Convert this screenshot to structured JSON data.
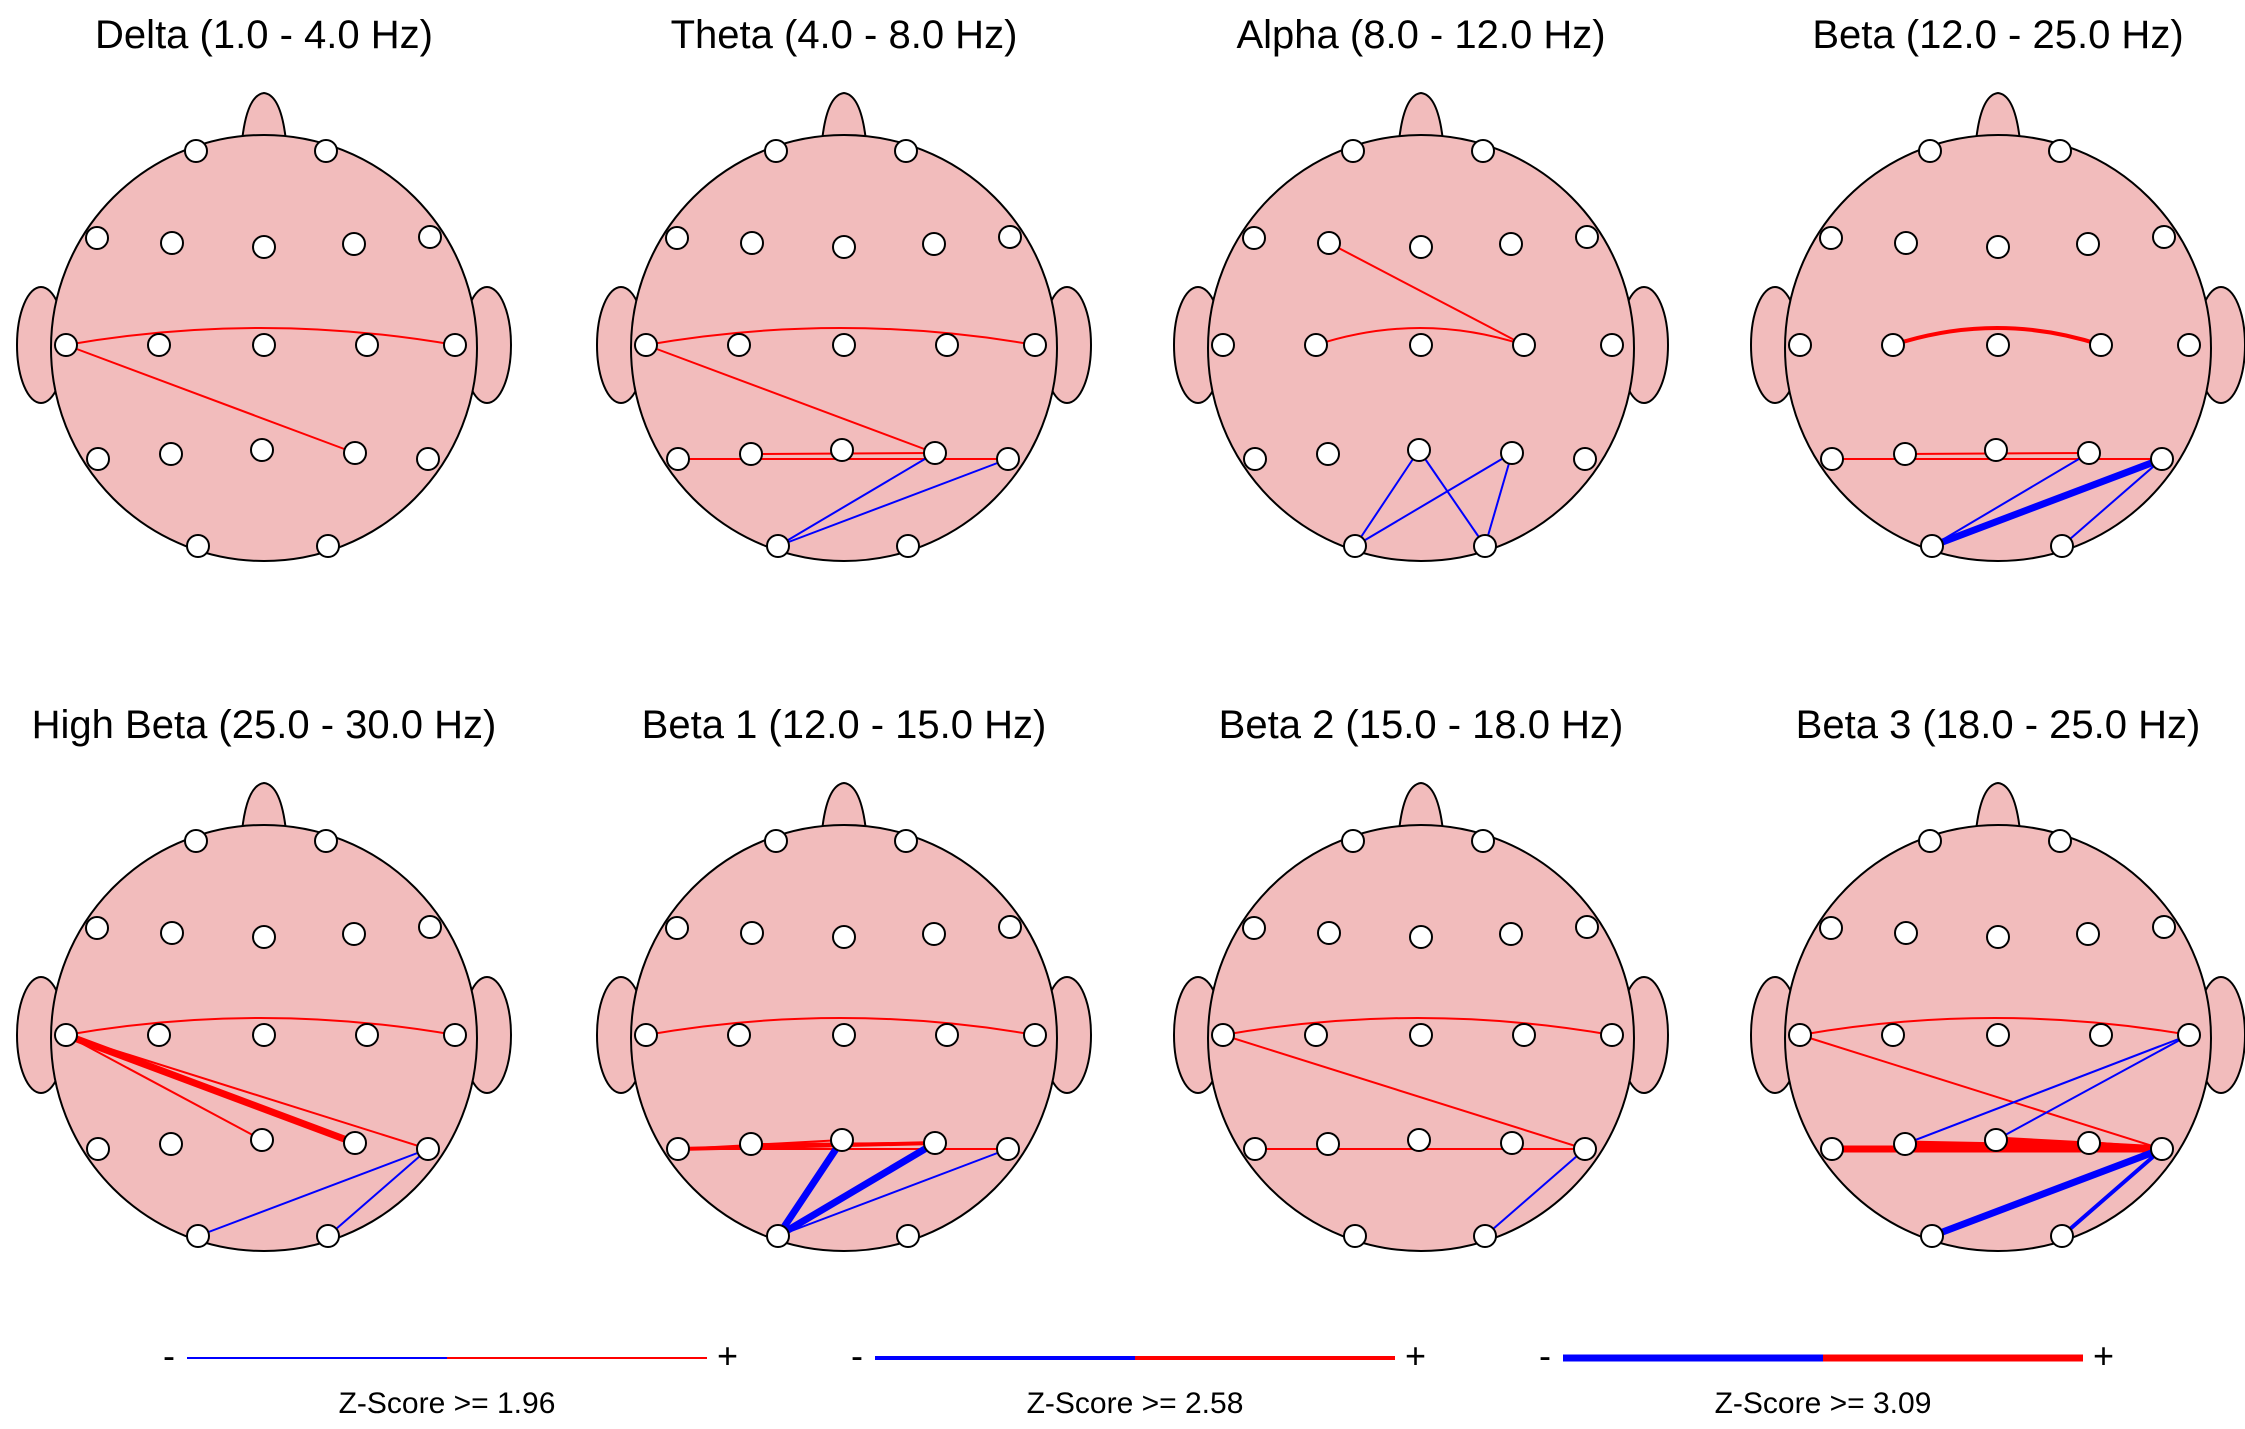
{
  "colors": {
    "head_fill": "#f2bcbc",
    "outline": "#000000",
    "electrode_fill": "#ffffff",
    "positive": "#ff0000",
    "negative": "#0000ff"
  },
  "panels": [
    {
      "title": "Delta (1.0 - 4.0 Hz)",
      "connections": [
        {
          "a": "T3",
          "b": "T4",
          "z": "pos",
          "level": 1,
          "arc": true
        },
        {
          "a": "T3",
          "b": "P4",
          "z": "pos",
          "level": 1
        }
      ]
    },
    {
      "title": "Theta (4.0 - 8.0 Hz)",
      "connections": [
        {
          "a": "T3",
          "b": "T4",
          "z": "pos",
          "level": 1,
          "arc": true
        },
        {
          "a": "T3",
          "b": "P4",
          "z": "pos",
          "level": 1
        },
        {
          "a": "T5",
          "b": "T6",
          "z": "pos",
          "level": 1
        },
        {
          "a": "P3",
          "b": "P4",
          "z": "pos",
          "level": 1
        },
        {
          "a": "O1",
          "b": "P4",
          "z": "neg",
          "level": 1
        },
        {
          "a": "O1",
          "b": "T6",
          "z": "neg",
          "level": 1
        }
      ]
    },
    {
      "title": "Alpha (8.0 - 12.0 Hz)",
      "connections": [
        {
          "a": "F3",
          "b": "C4",
          "z": "pos",
          "level": 1
        },
        {
          "a": "C3",
          "b": "C4",
          "z": "pos",
          "level": 1,
          "arc": true
        },
        {
          "a": "O1",
          "b": "Pz",
          "z": "neg",
          "level": 1
        },
        {
          "a": "O1",
          "b": "P4",
          "z": "neg",
          "level": 1
        },
        {
          "a": "Pz",
          "b": "O2",
          "z": "neg",
          "level": 1
        },
        {
          "a": "P4",
          "b": "O2",
          "z": "neg",
          "level": 1
        }
      ]
    },
    {
      "title": "Beta (12.0 - 25.0 Hz)",
      "connections": [
        {
          "a": "C3",
          "b": "C4",
          "z": "pos",
          "level": 2,
          "arc": true
        },
        {
          "a": "T5",
          "b": "T6",
          "z": "pos",
          "level": 1
        },
        {
          "a": "P3",
          "b": "P4",
          "z": "pos",
          "level": 1
        },
        {
          "a": "O1",
          "b": "P4",
          "z": "neg",
          "level": 1
        },
        {
          "a": "O1",
          "b": "T6",
          "z": "neg",
          "level": 3
        },
        {
          "a": "O2",
          "b": "T6",
          "z": "neg",
          "level": 1
        }
      ]
    },
    {
      "title": "High Beta (25.0 - 30.0 Hz)",
      "connections": [
        {
          "a": "T3",
          "b": "T4",
          "z": "pos",
          "level": 1,
          "arc": true
        },
        {
          "a": "T3",
          "b": "P4",
          "z": "pos",
          "level": 3
        },
        {
          "a": "T3",
          "b": "Pz",
          "z": "pos",
          "level": 1
        },
        {
          "a": "T3",
          "b": "T6",
          "z": "pos",
          "level": 1
        },
        {
          "a": "O1",
          "b": "T6",
          "z": "neg",
          "level": 1
        },
        {
          "a": "O2",
          "b": "T6",
          "z": "neg",
          "level": 1
        }
      ]
    },
    {
      "title": "Beta 1 (12.0 - 15.0 Hz)",
      "connections": [
        {
          "a": "T3",
          "b": "T4",
          "z": "pos",
          "level": 1,
          "arc": true
        },
        {
          "a": "T5",
          "b": "P4",
          "z": "pos",
          "level": 2
        },
        {
          "a": "T5",
          "b": "Pz",
          "z": "pos",
          "level": 1
        },
        {
          "a": "P3",
          "b": "P4",
          "z": "pos",
          "level": 1
        },
        {
          "a": "T5",
          "b": "T6",
          "z": "pos",
          "level": 1
        },
        {
          "a": "O1",
          "b": "Pz",
          "z": "neg",
          "level": 3
        },
        {
          "a": "O1",
          "b": "P4",
          "z": "neg",
          "level": 3
        },
        {
          "a": "O1",
          "b": "T6",
          "z": "neg",
          "level": 1
        }
      ]
    },
    {
      "title": "Beta 2 (15.0 - 18.0 Hz)",
      "connections": [
        {
          "a": "T3",
          "b": "T4",
          "z": "pos",
          "level": 1,
          "arc": true
        },
        {
          "a": "T3",
          "b": "T6",
          "z": "pos",
          "level": 1
        },
        {
          "a": "T5",
          "b": "T6",
          "z": "pos",
          "level": 1
        },
        {
          "a": "O2",
          "b": "T6",
          "z": "neg",
          "level": 1
        }
      ]
    },
    {
      "title": "Beta 3 (18.0 - 25.0 Hz)",
      "connections": [
        {
          "a": "T3",
          "b": "T4",
          "z": "pos",
          "level": 1,
          "arc": true
        },
        {
          "a": "T3",
          "b": "T6",
          "z": "pos",
          "level": 1
        },
        {
          "a": "T5",
          "b": "T6",
          "z": "pos",
          "level": 3
        },
        {
          "a": "P3",
          "b": "T6",
          "z": "pos",
          "level": 3
        },
        {
          "a": "Pz",
          "b": "T6",
          "z": "pos",
          "level": 3
        },
        {
          "a": "P4",
          "b": "T6",
          "z": "pos",
          "level": 2
        },
        {
          "a": "P3",
          "b": "T4",
          "z": "neg",
          "level": 1
        },
        {
          "a": "Pz",
          "b": "T4",
          "z": "neg",
          "level": 1
        },
        {
          "a": "O1",
          "b": "T6",
          "z": "neg",
          "level": 3
        },
        {
          "a": "O2",
          "b": "T6",
          "z": "neg",
          "level": 2
        }
      ]
    }
  ],
  "legend": [
    {
      "minus": "-",
      "plus": "+",
      "label": "Z-Score >= 1.96",
      "level": 1
    },
    {
      "minus": "-",
      "plus": "+",
      "label": "Z-Score >= 2.58",
      "level": 2
    },
    {
      "minus": "-",
      "plus": "+",
      "label": "Z-Score >= 3.09",
      "level": 3
    }
  ]
}
